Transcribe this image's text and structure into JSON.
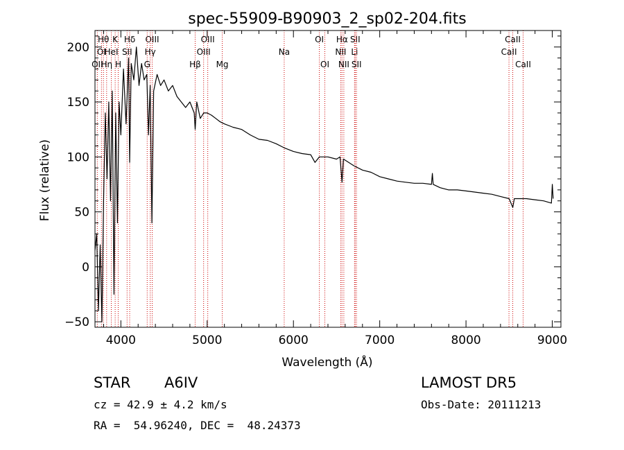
{
  "chart_data": {
    "type": "line",
    "title": "spec-55909-B90903_2_sp02-204.fits",
    "xlabel": "Wavelength (Å)",
    "ylabel": "Flux (relative)",
    "xlim": [
      3700,
      9100
    ],
    "ylim": [
      -55,
      215
    ],
    "xticks": [
      4000,
      5000,
      6000,
      7000,
      8000,
      9000
    ],
    "yticks": [
      -50,
      0,
      50,
      100,
      150,
      200
    ],
    "grid": false,
    "line_color": "#000000",
    "marker_line_color": "#cc0000",
    "series": [
      {
        "x": [
          3700,
          3720,
          3740,
          3760,
          3780,
          3800,
          3820,
          3840,
          3860,
          3880,
          3900,
          3920,
          3940,
          3960,
          3980,
          4000,
          4030,
          4060,
          4090,
          4102,
          4120,
          4150,
          4180,
          4210,
          4240,
          4270,
          4300,
          4320,
          4340,
          4360,
          4380,
          4420,
          4460,
          4500,
          4550,
          4600,
          4650,
          4700,
          4750,
          4800,
          4850,
          4861,
          4880,
          4920,
          4960,
          5000,
          5050,
          5100,
          5150,
          5200,
          5300,
          5400,
          5500,
          5600,
          5700,
          5800,
          5900,
          6000,
          6100,
          6200,
          6250,
          6300,
          6400,
          6500,
          6540,
          6563,
          6580,
          6620,
          6700,
          6800,
          6900,
          7000,
          7100,
          7200,
          7300,
          7400,
          7500,
          7600,
          7610,
          7620,
          7700,
          7800,
          7900,
          8000,
          8100,
          8200,
          8300,
          8400,
          8500,
          8542,
          8560,
          8600,
          8700,
          8800,
          8900,
          8990,
          9000,
          9010
        ],
        "y": [
          15,
          30,
          -40,
          20,
          -50,
          60,
          140,
          80,
          150,
          60,
          160,
          -25,
          140,
          40,
          150,
          120,
          180,
          130,
          190,
          95,
          185,
          170,
          200,
          165,
          185,
          170,
          175,
          120,
          165,
          40,
          160,
          175,
          165,
          170,
          160,
          165,
          155,
          150,
          145,
          150,
          140,
          125,
          150,
          135,
          140,
          140,
          138,
          135,
          132,
          130,
          127,
          125,
          120,
          116,
          115,
          112,
          108,
          105,
          103,
          102,
          95,
          100,
          100,
          98,
          100,
          77,
          98,
          96,
          92,
          88,
          86,
          82,
          80,
          78,
          77,
          76,
          76,
          75,
          85,
          75,
          72,
          70,
          70,
          69,
          68,
          67,
          66,
          64,
          62,
          54,
          62,
          62,
          62,
          61,
          60,
          58,
          75,
          62
        ]
      }
    ],
    "line_markers": [
      {
        "label": "Hθ",
        "x": 3798,
        "row": 0
      },
      {
        "label": "OI",
        "x": 3775,
        "row": 1
      },
      {
        "label": "OII",
        "x": 3727,
        "row": 2
      },
      {
        "label": "K",
        "x": 3934,
        "row": 0
      },
      {
        "label": "HeI",
        "x": 3889,
        "row": 1
      },
      {
        "label": "Hη",
        "x": 3835,
        "row": 2
      },
      {
        "label": "Hδ",
        "x": 4102,
        "row": 0
      },
      {
        "label": "SII",
        "x": 4072,
        "row": 1
      },
      {
        "label": "H",
        "x": 3969,
        "row": 2
      },
      {
        "label": "OIII",
        "x": 4363,
        "row": 0
      },
      {
        "label": "Hγ",
        "x": 4340,
        "row": 1
      },
      {
        "label": "G",
        "x": 4305,
        "row": 2
      },
      {
        "label": "OIII",
        "x": 5007,
        "row": 0
      },
      {
        "label": "OIII",
        "x": 4959,
        "row": 1
      },
      {
        "label": "Hβ",
        "x": 4861,
        "row": 2
      },
      {
        "label": "Mg",
        "x": 5175,
        "row": 2
      },
      {
        "label": "Na",
        "x": 5893,
        "row": 1
      },
      {
        "label": "OI",
        "x": 6300,
        "row": 0
      },
      {
        "label": "OI",
        "x": 6364,
        "row": 2
      },
      {
        "label": "Hα",
        "x": 6563,
        "row": 0
      },
      {
        "label": "SII",
        "x": 6716,
        "row": 0
      },
      {
        "label": "NII",
        "x": 6548,
        "row": 1
      },
      {
        "label": "Li",
        "x": 6708,
        "row": 1
      },
      {
        "label": "NII",
        "x": 6584,
        "row": 2
      },
      {
        "label": "SII",
        "x": 6731,
        "row": 2
      },
      {
        "label": "CaII",
        "x": 8542,
        "row": 0
      },
      {
        "label": "CaII",
        "x": 8498,
        "row": 1
      },
      {
        "label": "CaII",
        "x": 8662,
        "row": 2
      }
    ]
  },
  "info": {
    "object_class": "STAR",
    "subclass": "A6IV",
    "cz": "cz = 42.9 ± 4.2 km/s",
    "radec": "RA =  54.96240, DEC =  48.24373",
    "survey": "LAMOST DR5",
    "obs_date": "Obs-Date: 20111213"
  }
}
